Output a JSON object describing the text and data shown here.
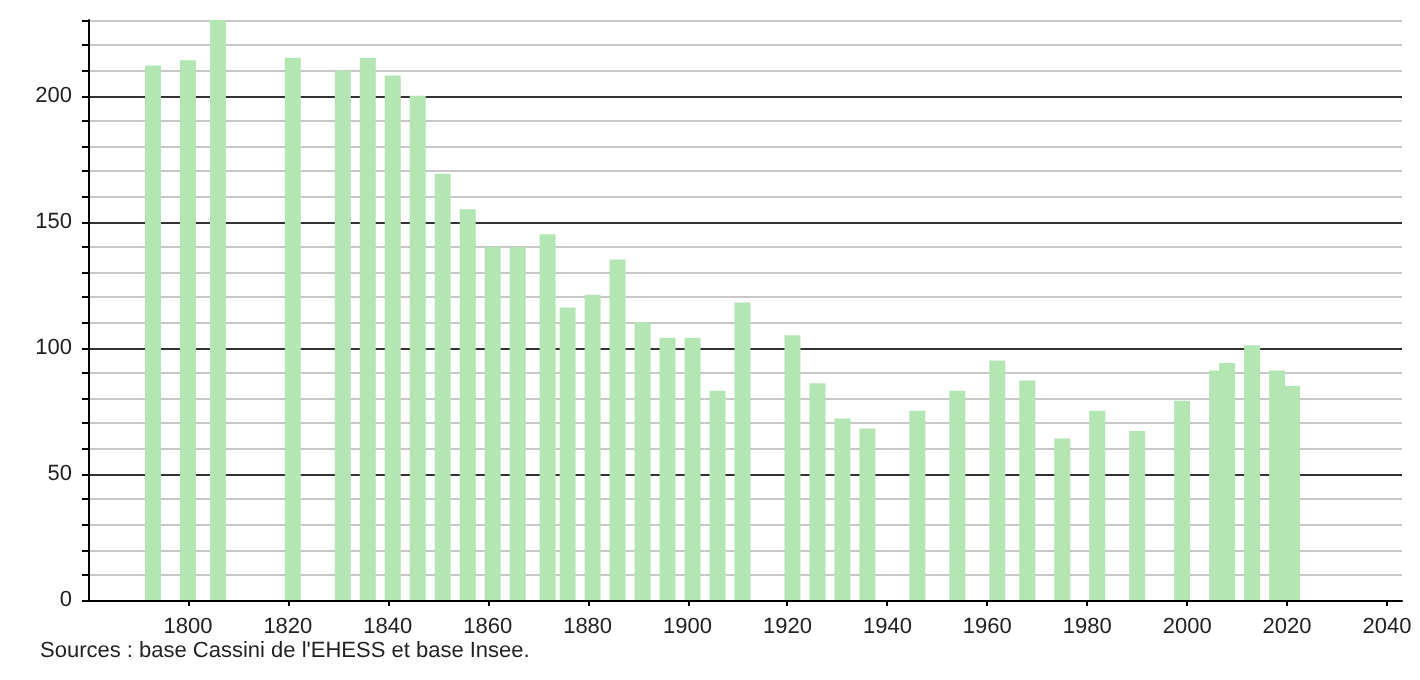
{
  "chart_data": {
    "type": "bar",
    "x": [
      1793,
      1800,
      1806,
      1821,
      1831,
      1836,
      1841,
      1846,
      1851,
      1856,
      1861,
      1866,
      1872,
      1876,
      1881,
      1886,
      1891,
      1896,
      1901,
      1906,
      1911,
      1921,
      1926,
      1931,
      1936,
      1946,
      1954,
      1962,
      1968,
      1975,
      1982,
      1990,
      1999,
      2006,
      2008,
      2013,
      2018,
      2021
    ],
    "values": [
      212,
      214,
      230,
      215,
      210,
      215,
      208,
      200,
      169,
      155,
      140,
      140,
      145,
      116,
      121,
      135,
      110,
      104,
      104,
      83,
      118,
      105,
      86,
      72,
      68,
      75,
      83,
      95,
      87,
      64,
      75,
      67,
      79,
      91,
      94,
      101,
      91,
      85
    ],
    "color": "#b3e6b3",
    "xlim": [
      1780,
      2043
    ],
    "xticks": [
      1800,
      1820,
      1840,
      1860,
      1880,
      1900,
      1920,
      1940,
      1960,
      1980,
      2000,
      2020,
      2040
    ],
    "ylim": [
      0,
      230
    ],
    "yticks": [
      0,
      {
        "value": 10,
        "label": null
      },
      {
        "value": 20,
        "label": null
      },
      {
        "value": 30,
        "label": null
      },
      {
        "value": 40,
        "label": null
      },
      50,
      {
        "value": 60,
        "label": null
      },
      {
        "value": 70,
        "label": null
      },
      {
        "value": 80,
        "label": null
      },
      {
        "value": 90,
        "label": null
      },
      100,
      {
        "value": 110,
        "label": null
      },
      {
        "value": 120,
        "label": null
      },
      {
        "value": 130,
        "label": null
      },
      {
        "value": 140,
        "label": null
      },
      150,
      {
        "value": 160,
        "label": null
      },
      {
        "value": 170,
        "label": null
      },
      {
        "value": 180,
        "label": null
      },
      {
        "value": 190,
        "label": null
      },
      200,
      {
        "value": 210,
        "label": null
      },
      {
        "value": 220,
        "label": null
      },
      {
        "value": 230,
        "label": null
      }
    ],
    "grid": "y",
    "annotations": [
      "Sources : base Cassini de l'EHESS et base Insee."
    ]
  }
}
